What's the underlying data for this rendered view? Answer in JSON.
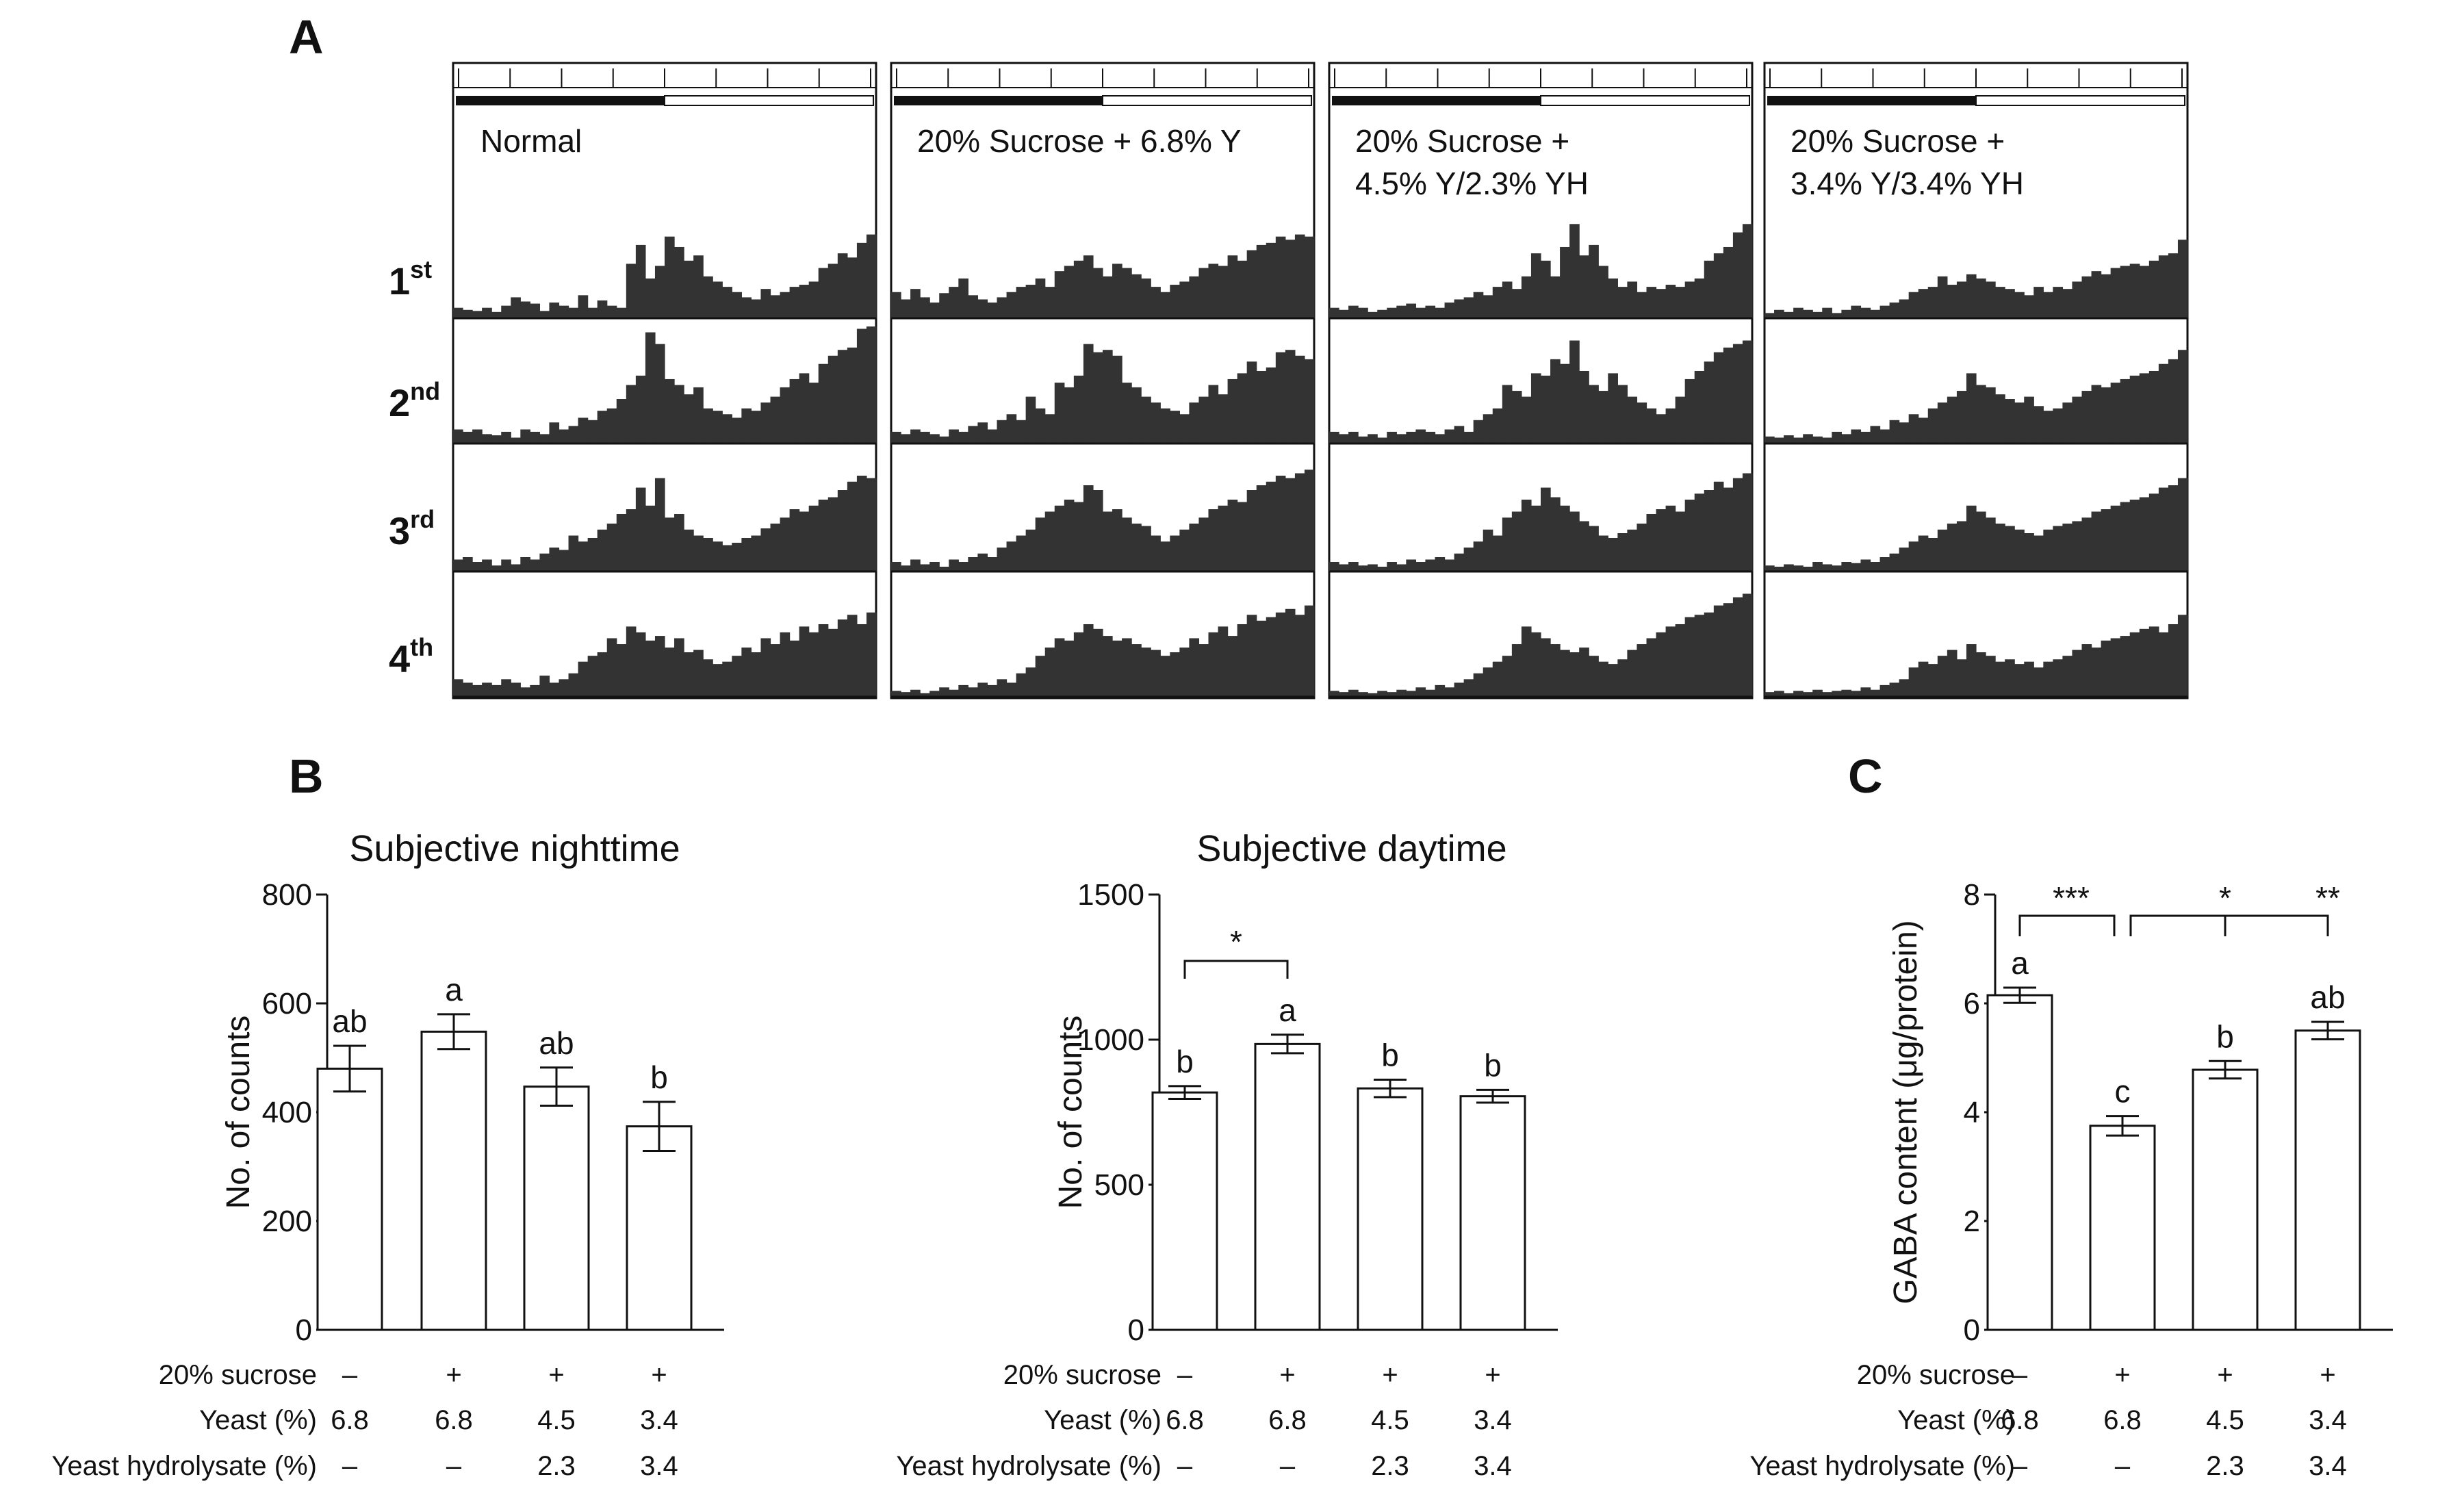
{
  "panel_labels": {
    "a": "A",
    "b": "B",
    "c": "C"
  },
  "actograms": {
    "conditions": [
      {
        "label_lines": [
          "Normal"
        ]
      },
      {
        "label_lines": [
          "20% Sucrose + 6.8% Y"
        ]
      },
      {
        "label_lines": [
          "20% Sucrose +",
          "4.5% Y/2.3% YH"
        ]
      },
      {
        "label_lines": [
          "20% Sucrose +",
          "3.4% Y/3.4% YH"
        ]
      }
    ],
    "rows": [
      {
        "main": "1",
        "sup": "st"
      },
      {
        "main": "2",
        "sup": "nd"
      },
      {
        "main": "3",
        "sup": "rd"
      },
      {
        "main": "4",
        "sup": "th"
      }
    ],
    "data": [
      [
        [
          0.1,
          0.08,
          0.07,
          0.1,
          0.06,
          0.12,
          0.2,
          0.16,
          0.14,
          0.07,
          0.15,
          0.12,
          0.1,
          0.22,
          0.1,
          0.17,
          0.12,
          0.1,
          0.52,
          0.7,
          0.38,
          0.5,
          0.78,
          0.68,
          0.55,
          0.6,
          0.4,
          0.35,
          0.3,
          0.25,
          0.2,
          0.18,
          0.28,
          0.22,
          0.25,
          0.3,
          0.32,
          0.35,
          0.48,
          0.52,
          0.62,
          0.58,
          0.72,
          0.8
        ],
        [
          0.12,
          0.1,
          0.12,
          0.08,
          0.07,
          0.1,
          0.05,
          0.12,
          0.1,
          0.08,
          0.18,
          0.12,
          0.15,
          0.22,
          0.2,
          0.28,
          0.3,
          0.38,
          0.5,
          0.58,
          0.95,
          0.85,
          0.55,
          0.5,
          0.42,
          0.48,
          0.3,
          0.28,
          0.25,
          0.22,
          0.3,
          0.28,
          0.35,
          0.4,
          0.48,
          0.55,
          0.6,
          0.52,
          0.68,
          0.75,
          0.8,
          0.82,
          0.98,
          1.0
        ],
        [
          0.1,
          0.12,
          0.08,
          0.1,
          0.05,
          0.1,
          0.06,
          0.12,
          0.1,
          0.15,
          0.2,
          0.18,
          0.3,
          0.25,
          0.28,
          0.35,
          0.4,
          0.48,
          0.52,
          0.7,
          0.55,
          0.78,
          0.45,
          0.48,
          0.35,
          0.3,
          0.28,
          0.25,
          0.22,
          0.24,
          0.28,
          0.3,
          0.36,
          0.4,
          0.45,
          0.52,
          0.5,
          0.55,
          0.6,
          0.62,
          0.68,
          0.75,
          0.8,
          0.78
        ],
        [
          0.15,
          0.12,
          0.1,
          0.12,
          0.1,
          0.15,
          0.12,
          0.08,
          0.1,
          0.18,
          0.12,
          0.15,
          0.2,
          0.3,
          0.35,
          0.38,
          0.5,
          0.45,
          0.6,
          0.55,
          0.48,
          0.52,
          0.42,
          0.5,
          0.38,
          0.4,
          0.32,
          0.28,
          0.3,
          0.35,
          0.42,
          0.38,
          0.5,
          0.45,
          0.55,
          0.48,
          0.6,
          0.55,
          0.62,
          0.58,
          0.66,
          0.7,
          0.62,
          0.72
        ]
      ],
      [
        [
          0.25,
          0.18,
          0.28,
          0.2,
          0.15,
          0.24,
          0.3,
          0.38,
          0.22,
          0.18,
          0.15,
          0.2,
          0.25,
          0.3,
          0.32,
          0.38,
          0.3,
          0.45,
          0.5,
          0.55,
          0.6,
          0.48,
          0.4,
          0.52,
          0.48,
          0.42,
          0.38,
          0.3,
          0.25,
          0.32,
          0.35,
          0.4,
          0.48,
          0.52,
          0.5,
          0.6,
          0.55,
          0.65,
          0.7,
          0.72,
          0.78,
          0.75,
          0.8,
          0.78
        ],
        [
          0.1,
          0.08,
          0.12,
          0.1,
          0.08,
          0.06,
          0.12,
          0.1,
          0.15,
          0.18,
          0.12,
          0.2,
          0.25,
          0.2,
          0.4,
          0.3,
          0.25,
          0.52,
          0.48,
          0.58,
          0.85,
          0.78,
          0.8,
          0.75,
          0.52,
          0.48,
          0.4,
          0.35,
          0.3,
          0.28,
          0.25,
          0.35,
          0.4,
          0.5,
          0.42,
          0.55,
          0.6,
          0.7,
          0.62,
          0.65,
          0.78,
          0.8,
          0.75,
          0.72
        ],
        [
          0.08,
          0.05,
          0.1,
          0.06,
          0.08,
          0.04,
          0.1,
          0.08,
          0.12,
          0.15,
          0.12,
          0.2,
          0.25,
          0.3,
          0.35,
          0.45,
          0.5,
          0.55,
          0.6,
          0.58,
          0.72,
          0.68,
          0.5,
          0.52,
          0.45,
          0.4,
          0.38,
          0.3,
          0.25,
          0.3,
          0.35,
          0.4,
          0.45,
          0.52,
          0.55,
          0.6,
          0.58,
          0.68,
          0.72,
          0.75,
          0.8,
          0.78,
          0.82,
          0.85
        ],
        [
          0.05,
          0.04,
          0.06,
          0.03,
          0.05,
          0.08,
          0.06,
          0.1,
          0.08,
          0.12,
          0.1,
          0.15,
          0.12,
          0.2,
          0.25,
          0.35,
          0.42,
          0.5,
          0.48,
          0.55,
          0.62,
          0.58,
          0.52,
          0.48,
          0.5,
          0.45,
          0.42,
          0.4,
          0.35,
          0.38,
          0.42,
          0.5,
          0.45,
          0.55,
          0.6,
          0.52,
          0.62,
          0.7,
          0.65,
          0.68,
          0.72,
          0.75,
          0.7,
          0.78
        ]
      ],
      [
        [
          0.1,
          0.08,
          0.12,
          0.1,
          0.06,
          0.08,
          0.1,
          0.12,
          0.14,
          0.1,
          0.12,
          0.1,
          0.15,
          0.18,
          0.2,
          0.25,
          0.22,
          0.3,
          0.35,
          0.28,
          0.4,
          0.62,
          0.55,
          0.4,
          0.68,
          0.9,
          0.6,
          0.7,
          0.5,
          0.38,
          0.3,
          0.35,
          0.25,
          0.3,
          0.28,
          0.32,
          0.3,
          0.35,
          0.38,
          0.55,
          0.62,
          0.68,
          0.82,
          0.9
        ],
        [
          0.1,
          0.08,
          0.1,
          0.06,
          0.08,
          0.05,
          0.1,
          0.08,
          0.1,
          0.12,
          0.1,
          0.08,
          0.12,
          0.15,
          0.1,
          0.2,
          0.25,
          0.3,
          0.5,
          0.45,
          0.4,
          0.6,
          0.58,
          0.72,
          0.68,
          0.88,
          0.62,
          0.5,
          0.45,
          0.6,
          0.5,
          0.4,
          0.35,
          0.3,
          0.25,
          0.3,
          0.4,
          0.55,
          0.62,
          0.7,
          0.78,
          0.82,
          0.85,
          0.88
        ],
        [
          0.08,
          0.06,
          0.08,
          0.05,
          0.06,
          0.04,
          0.08,
          0.06,
          0.1,
          0.08,
          0.1,
          0.12,
          0.1,
          0.15,
          0.2,
          0.25,
          0.35,
          0.3,
          0.45,
          0.5,
          0.6,
          0.55,
          0.7,
          0.62,
          0.55,
          0.5,
          0.42,
          0.38,
          0.3,
          0.28,
          0.32,
          0.35,
          0.4,
          0.48,
          0.52,
          0.55,
          0.5,
          0.6,
          0.65,
          0.68,
          0.75,
          0.7,
          0.78,
          0.82
        ],
        [
          0.05,
          0.04,
          0.06,
          0.04,
          0.03,
          0.05,
          0.04,
          0.06,
          0.05,
          0.08,
          0.06,
          0.1,
          0.08,
          0.12,
          0.15,
          0.2,
          0.25,
          0.3,
          0.35,
          0.45,
          0.6,
          0.55,
          0.5,
          0.45,
          0.4,
          0.38,
          0.42,
          0.35,
          0.3,
          0.28,
          0.32,
          0.4,
          0.45,
          0.5,
          0.55,
          0.6,
          0.62,
          0.68,
          0.7,
          0.72,
          0.78,
          0.8,
          0.85,
          0.88
        ]
      ],
      [
        [
          0.05,
          0.08,
          0.06,
          0.1,
          0.08,
          0.06,
          0.1,
          0.05,
          0.08,
          0.12,
          0.1,
          0.08,
          0.12,
          0.15,
          0.18,
          0.25,
          0.28,
          0.3,
          0.4,
          0.32,
          0.35,
          0.42,
          0.38,
          0.35,
          0.3,
          0.28,
          0.25,
          0.22,
          0.3,
          0.25,
          0.3,
          0.28,
          0.35,
          0.4,
          0.45,
          0.42,
          0.48,
          0.5,
          0.52,
          0.5,
          0.55,
          0.6,
          0.62,
          0.75
        ],
        [
          0.06,
          0.05,
          0.07,
          0.05,
          0.08,
          0.06,
          0.05,
          0.1,
          0.08,
          0.12,
          0.1,
          0.15,
          0.12,
          0.2,
          0.18,
          0.25,
          0.22,
          0.3,
          0.35,
          0.4,
          0.45,
          0.6,
          0.5,
          0.48,
          0.42,
          0.38,
          0.35,
          0.4,
          0.32,
          0.28,
          0.3,
          0.35,
          0.4,
          0.45,
          0.5,
          0.48,
          0.52,
          0.55,
          0.58,
          0.6,
          0.62,
          0.68,
          0.72,
          0.8
        ],
        [
          0.05,
          0.04,
          0.06,
          0.05,
          0.04,
          0.08,
          0.06,
          0.05,
          0.08,
          0.07,
          0.1,
          0.08,
          0.12,
          0.15,
          0.2,
          0.25,
          0.3,
          0.28,
          0.35,
          0.4,
          0.42,
          0.55,
          0.5,
          0.45,
          0.4,
          0.38,
          0.35,
          0.32,
          0.3,
          0.35,
          0.38,
          0.4,
          0.42,
          0.45,
          0.5,
          0.52,
          0.55,
          0.58,
          0.6,
          0.62,
          0.65,
          0.7,
          0.72,
          0.78
        ],
        [
          0.04,
          0.05,
          0.03,
          0.05,
          0.04,
          0.06,
          0.04,
          0.05,
          0.06,
          0.05,
          0.08,
          0.06,
          0.1,
          0.12,
          0.15,
          0.25,
          0.3,
          0.28,
          0.35,
          0.4,
          0.32,
          0.45,
          0.38,
          0.35,
          0.3,
          0.32,
          0.28,
          0.3,
          0.25,
          0.3,
          0.32,
          0.35,
          0.4,
          0.45,
          0.42,
          0.48,
          0.5,
          0.52,
          0.55,
          0.58,
          0.6,
          0.55,
          0.62,
          0.7
        ]
      ]
    ]
  },
  "chart_data": [
    {
      "type": "bar",
      "title": "Subjective nighttime",
      "ylabel": "No. of counts",
      "ylim": [
        0,
        800
      ],
      "yticks": [
        "0",
        "200",
        "400",
        "600",
        "800"
      ],
      "values": [
        480,
        548,
        447,
        374
      ],
      "errors": [
        42,
        32,
        35,
        45
      ],
      "letters": [
        "ab",
        "a",
        "ab",
        "b"
      ],
      "brackets": []
    },
    {
      "type": "bar",
      "title": "Subjective daytime",
      "ylabel": "No. of counts",
      "ylim": [
        0,
        1500
      ],
      "yticks": [
        "0",
        "500",
        "1000",
        "1500"
      ],
      "values": [
        818,
        985,
        832,
        805
      ],
      "errors": [
        22,
        32,
        30,
        22
      ],
      "letters": [
        "b",
        "a",
        "b",
        "b"
      ],
      "brackets": [
        {
          "from": 0,
          "to": 1,
          "label": "*"
        }
      ]
    },
    {
      "type": "bar",
      "title": "",
      "ylabel": "GABA content (μg/protein)",
      "ylim": [
        0,
        8
      ],
      "yticks": [
        "0",
        "2",
        "4",
        "6",
        "8"
      ],
      "values": [
        6.15,
        3.75,
        4.78,
        5.5
      ],
      "errors": [
        0.14,
        0.18,
        0.16,
        0.16
      ],
      "letters": [
        "a",
        "c",
        "b",
        "ab"
      ],
      "brackets": [
        {
          "from": 0,
          "to": 1,
          "label": "***"
        },
        {
          "from": 1,
          "to": 2,
          "label": "*"
        },
        {
          "from": 1,
          "to": 3,
          "label": "**"
        }
      ]
    }
  ],
  "condition_table": {
    "rows": [
      {
        "label": "20% sucrose",
        "values": [
          "–",
          "+",
          "+",
          "+"
        ]
      },
      {
        "label": "Yeast (%)",
        "values": [
          "6.8",
          "6.8",
          "4.5",
          "3.4"
        ]
      },
      {
        "label": "Yeast hydrolysate (%)",
        "values": [
          "–",
          "–",
          "2.3",
          "3.4"
        ]
      }
    ]
  },
  "colors": {
    "bars": "#333333",
    "axis": "#111111",
    "fill": "#ffffff"
  }
}
